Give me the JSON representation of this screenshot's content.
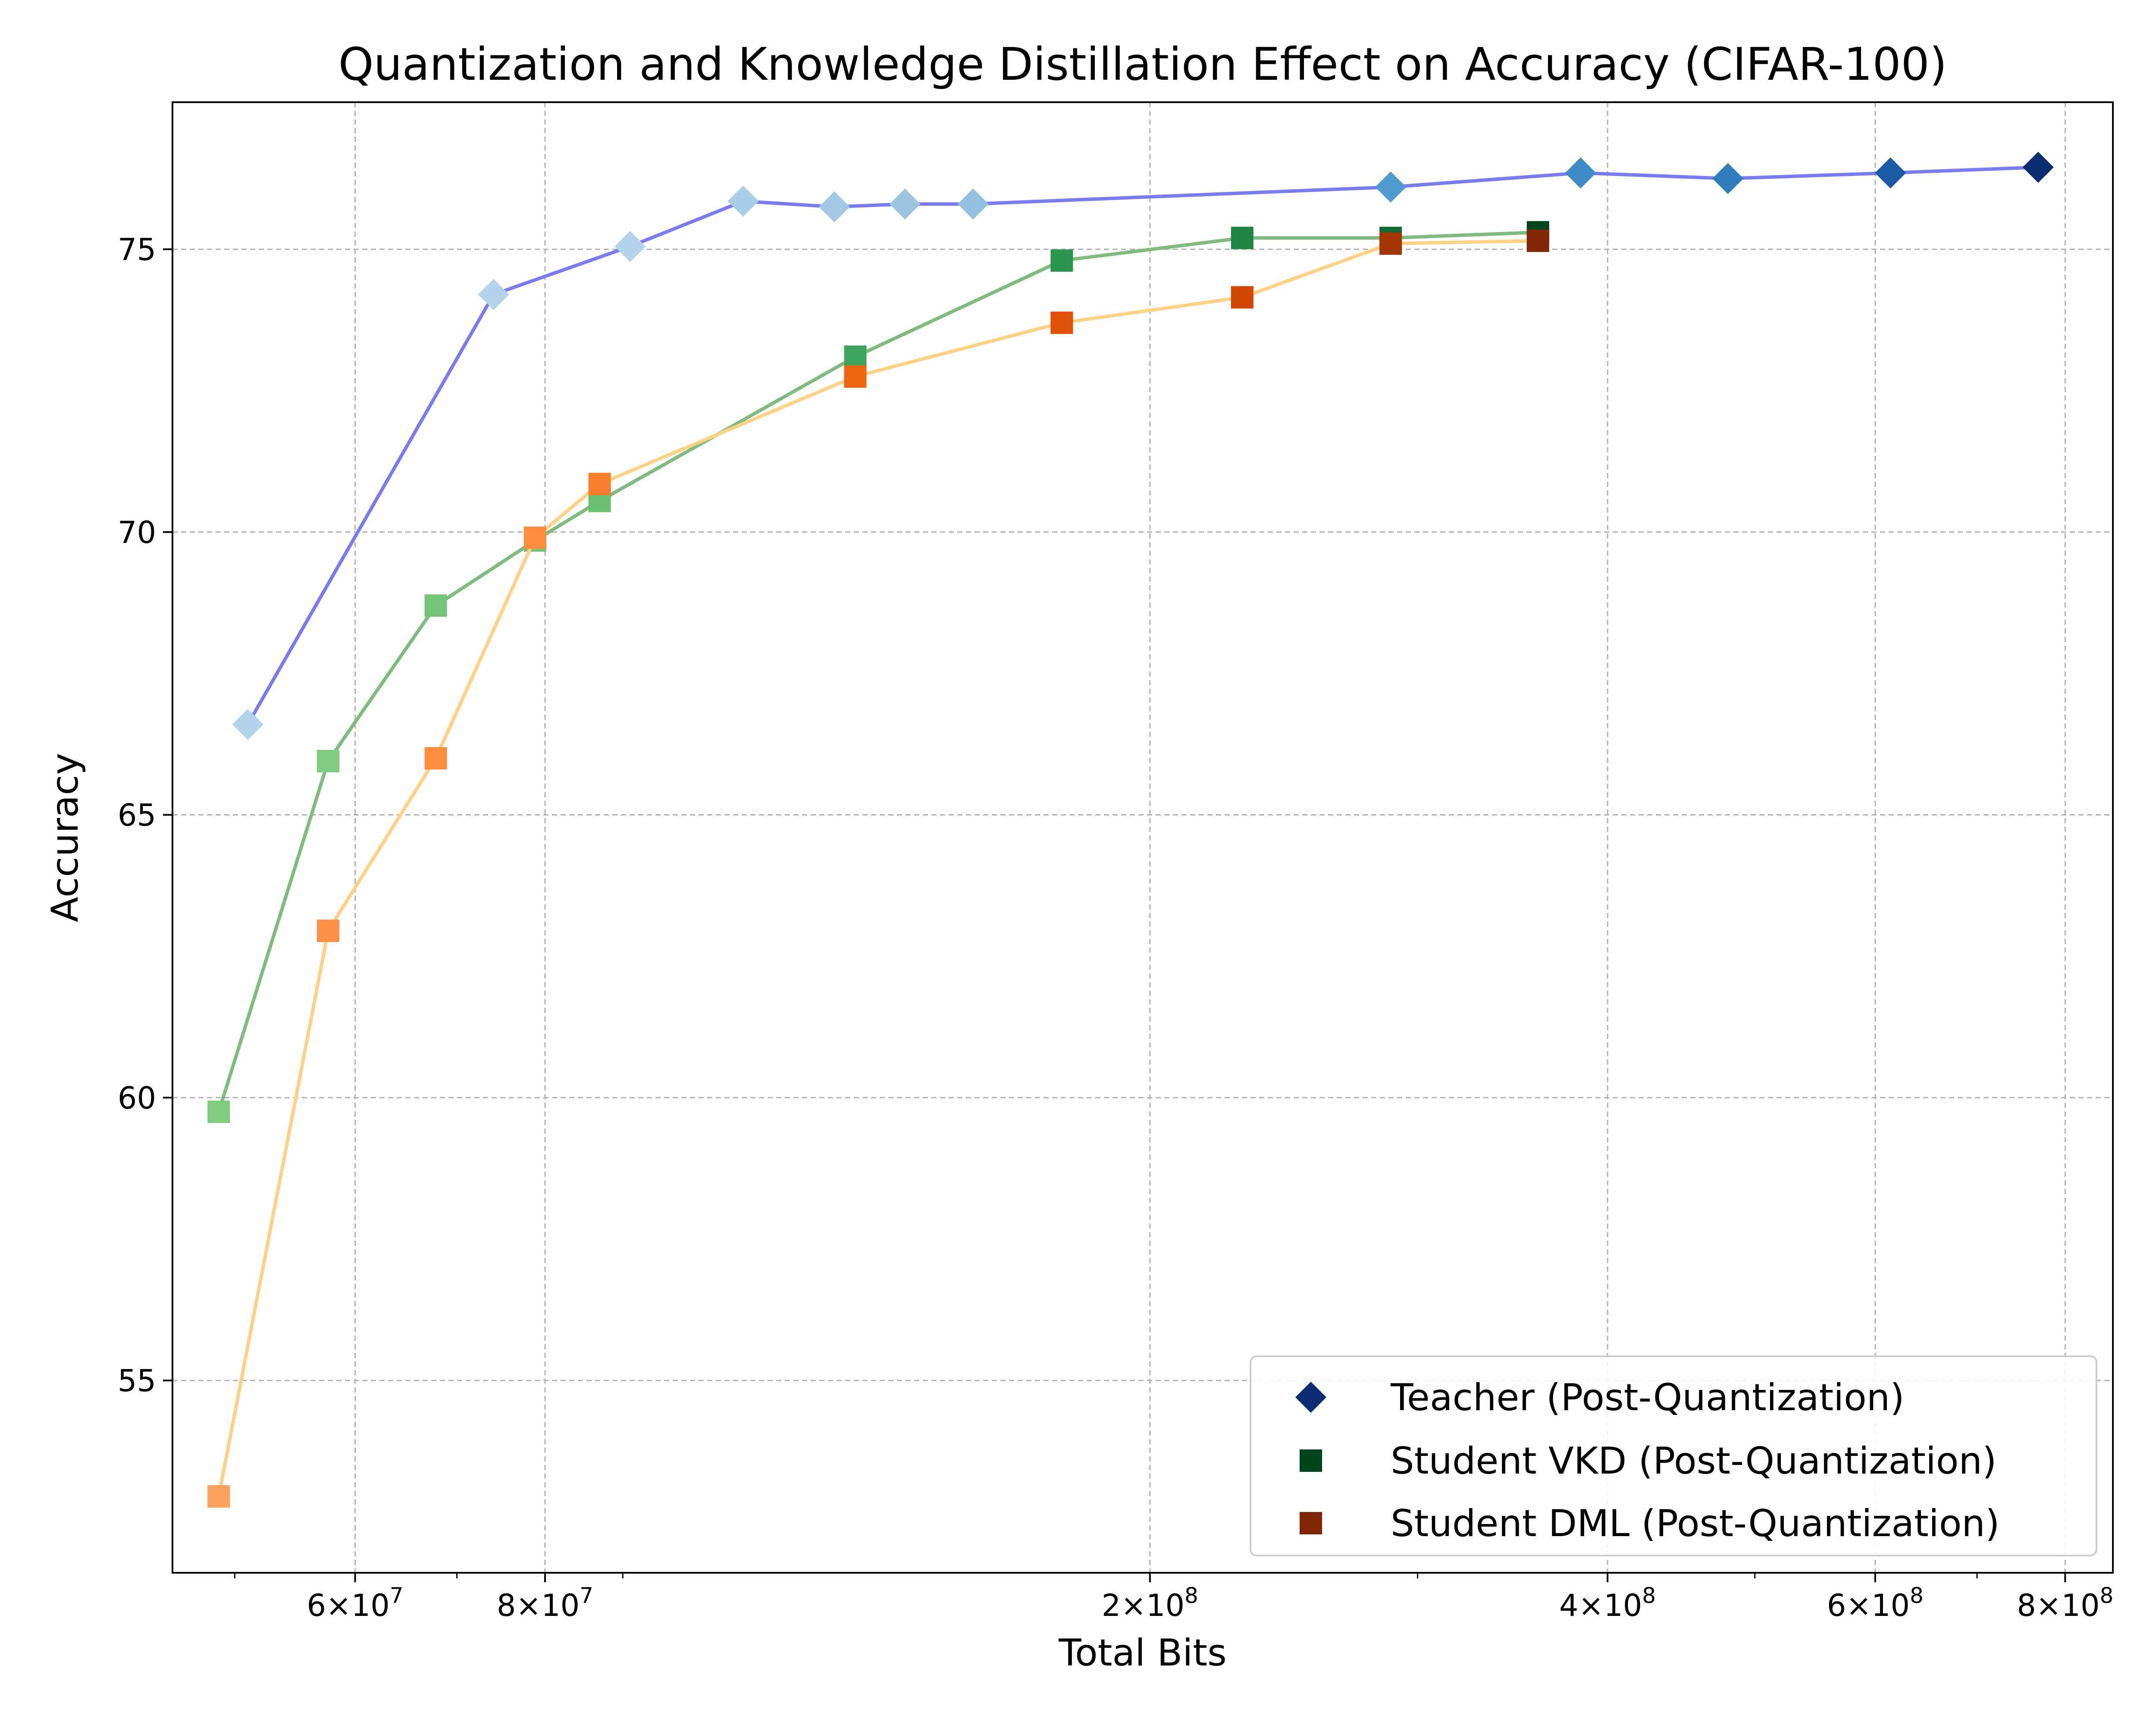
{
  "chart_data": {
    "type": "line",
    "title": "Quantization and Knowledge Distillation Effect on Accuracy (CIFAR-100)",
    "xlabel": "Total Bits",
    "ylabel": "Accuracy",
    "xscale": "log",
    "xlim": [
      45500000,
      860000000
    ],
    "ylim": [
      51.6,
      77.6
    ],
    "grid": true,
    "legend_position": "bottom-right",
    "x_ticks": [
      {
        "value": 60000000,
        "base": "6",
        "exp": "7"
      },
      {
        "value": 80000000,
        "base": "8",
        "exp": "7"
      },
      {
        "value": 200000000,
        "base": "2",
        "exp": "8"
      },
      {
        "value": 400000000,
        "base": "4",
        "exp": "8"
      },
      {
        "value": 600000000,
        "base": "6",
        "exp": "8"
      },
      {
        "value": 800000000,
        "base": "8",
        "exp": "8"
      }
    ],
    "y_ticks": [
      {
        "value": 55,
        "label": "55"
      },
      {
        "value": 60,
        "label": "60"
      },
      {
        "value": 65,
        "label": "65"
      },
      {
        "value": 70,
        "label": "70"
      },
      {
        "value": 75,
        "label": "75"
      }
    ],
    "series": [
      {
        "name": "Teacher (Post-Quantization)",
        "marker": "diamond",
        "line_color": "#7b7bf0",
        "legend_color": "#0b2e72",
        "points": [
          {
            "x": 51000000,
            "y": 66.6,
            "color": "#b3d3ea"
          },
          {
            "x": 74000000,
            "y": 74.2,
            "color": "#b3d3ea"
          },
          {
            "x": 91000000,
            "y": 75.05,
            "color": "#b3d3ea"
          },
          {
            "x": 108000000,
            "y": 75.85,
            "color": "#a9cde6"
          },
          {
            "x": 124000000,
            "y": 75.75,
            "color": "#a2c8e4"
          },
          {
            "x": 138000000,
            "y": 75.8,
            "color": "#9cc5e2"
          },
          {
            "x": 153000000,
            "y": 75.8,
            "color": "#94c0df"
          },
          {
            "x": 288000000,
            "y": 76.1,
            "color": "#4f9bcf"
          },
          {
            "x": 384000000,
            "y": 76.35,
            "color": "#3f8cc6"
          },
          {
            "x": 480000000,
            "y": 76.25,
            "color": "#2f7bbd"
          },
          {
            "x": 614000000,
            "y": 76.35,
            "color": "#1c5aa6"
          },
          {
            "x": 768000000,
            "y": 76.45,
            "color": "#0b2e72"
          }
        ]
      },
      {
        "name": "Student VKD (Post-Quantization)",
        "marker": "square",
        "line_color": "#7fba7f",
        "legend_color": "#00441b",
        "points": [
          {
            "x": 48800000,
            "y": 59.75,
            "color": "#7fcb7f"
          },
          {
            "x": 57600000,
            "y": 65.95,
            "color": "#7fcb7f"
          },
          {
            "x": 67800000,
            "y": 68.7,
            "color": "#74c476"
          },
          {
            "x": 78800000,
            "y": 69.85,
            "color": "#74c476"
          },
          {
            "x": 86900000,
            "y": 70.55,
            "color": "#6abf71"
          },
          {
            "x": 128000000,
            "y": 73.1,
            "color": "#3da55e"
          },
          {
            "x": 175000000,
            "y": 74.8,
            "color": "#2c9550"
          },
          {
            "x": 230000000,
            "y": 75.2,
            "color": "#1e8445"
          },
          {
            "x": 288000000,
            "y": 75.2,
            "color": "#0e6b34"
          },
          {
            "x": 360000000,
            "y": 75.3,
            "color": "#00441b"
          }
        ]
      },
      {
        "name": "Student DML (Post-Quantization)",
        "marker": "square",
        "line_color": "#fdd285",
        "legend_color": "#7f2704",
        "points": [
          {
            "x": 48800000,
            "y": 52.95,
            "color": "#fda25c"
          },
          {
            "x": 57600000,
            "y": 62.95,
            "color": "#fd9049"
          },
          {
            "x": 67800000,
            "y": 66.0,
            "color": "#fd8d3c"
          },
          {
            "x": 78800000,
            "y": 69.9,
            "color": "#fd8d3c"
          },
          {
            "x": 86900000,
            "y": 70.85,
            "color": "#f87e2c"
          },
          {
            "x": 128000000,
            "y": 72.75,
            "color": "#ee6511"
          },
          {
            "x": 175000000,
            "y": 73.7,
            "color": "#e05008"
          },
          {
            "x": 230000000,
            "y": 74.15,
            "color": "#d44703"
          },
          {
            "x": 288000000,
            "y": 75.1,
            "color": "#a33603"
          },
          {
            "x": 360000000,
            "y": 75.15,
            "color": "#7f2704"
          }
        ]
      }
    ]
  }
}
